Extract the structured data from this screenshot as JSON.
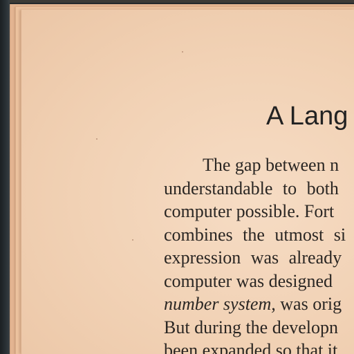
{
  "document": {
    "heading": "A Lang",
    "lines": [
      {
        "parts": [
          {
            "text": "The gap between n",
            "style": "normal"
          }
        ]
      },
      {
        "parts": [
          {
            "text": "understandable to both",
            "style": "normal"
          }
        ]
      },
      {
        "parts": [
          {
            "text": "computer possible. Fort",
            "style": "normal"
          }
        ]
      },
      {
        "parts": [
          {
            "text": "combines the utmost si",
            "style": "normal"
          }
        ]
      },
      {
        "parts": [
          {
            "text": "expression was already",
            "style": "normal"
          }
        ]
      },
      {
        "parts": [
          {
            "text": "computer was designed",
            "style": "normal"
          }
        ]
      },
      {
        "parts": [
          {
            "text": "number system,",
            "style": "italic"
          },
          {
            "text": " was orig",
            "style": "normal"
          }
        ]
      },
      {
        "parts": [
          {
            "text": "But during the developn",
            "style": "normal"
          }
        ]
      },
      {
        "parts": [
          {
            "text": "been expanded so that it",
            "style": "normal"
          }
        ]
      }
    ]
  },
  "colors": {
    "paper": "#f1d1b4",
    "paper_edge": "#e3b491",
    "ink": "#2a2623",
    "background_dark": "#24292c"
  }
}
